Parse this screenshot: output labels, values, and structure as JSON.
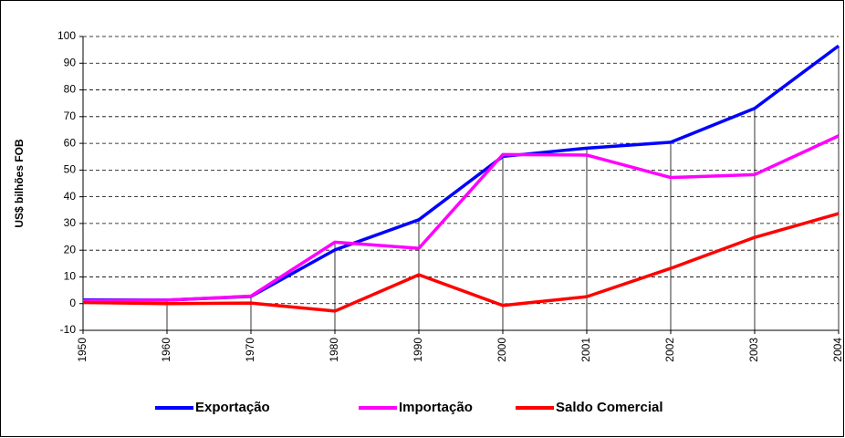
{
  "chart_data": {
    "type": "line",
    "y_label": "US$ bilhões  FOB",
    "categories": [
      "1950",
      "1960",
      "1970",
      "1980",
      "1990",
      "2000",
      "2001",
      "2002",
      "2003",
      "2004"
    ],
    "series": [
      {
        "name": "Exportação",
        "color": "#0000ff",
        "values": [
          1.4,
          1.3,
          2.7,
          20.1,
          31.4,
          55.1,
          58.2,
          60.4,
          73.1,
          96.5
        ]
      },
      {
        "name": "Importação",
        "color": "#ff00ff",
        "values": [
          1.1,
          1.3,
          2.8,
          23.0,
          20.7,
          55.8,
          55.6,
          47.2,
          48.3,
          62.8
        ]
      },
      {
        "name": "Saldo Comercial",
        "color": "#ff0000",
        "values": [
          0.4,
          0.0,
          0.2,
          -2.8,
          10.8,
          -0.7,
          2.6,
          13.2,
          24.8,
          33.7
        ]
      }
    ],
    "ylim": [
      -10,
      100
    ],
    "yticks": [
      -10,
      0,
      10,
      20,
      30,
      40,
      50,
      60,
      70,
      80,
      90,
      100
    ],
    "grid": true,
    "drop_lines": true,
    "legend": "bottom"
  }
}
